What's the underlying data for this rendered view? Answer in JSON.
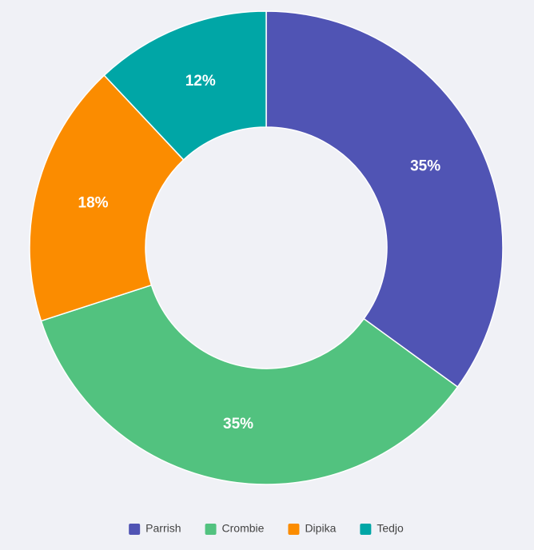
{
  "chart_data": {
    "type": "donut",
    "categories": [
      "Parrish",
      "Crombie",
      "Dipika",
      "Tedjo"
    ],
    "values": [
      35,
      35,
      18,
      12
    ],
    "value_labels": [
      "35%",
      "35%",
      "18%",
      "12%"
    ],
    "colors": [
      "#5054b4",
      "#52c27f",
      "#fb8c00",
      "#00a6a6"
    ]
  }
}
